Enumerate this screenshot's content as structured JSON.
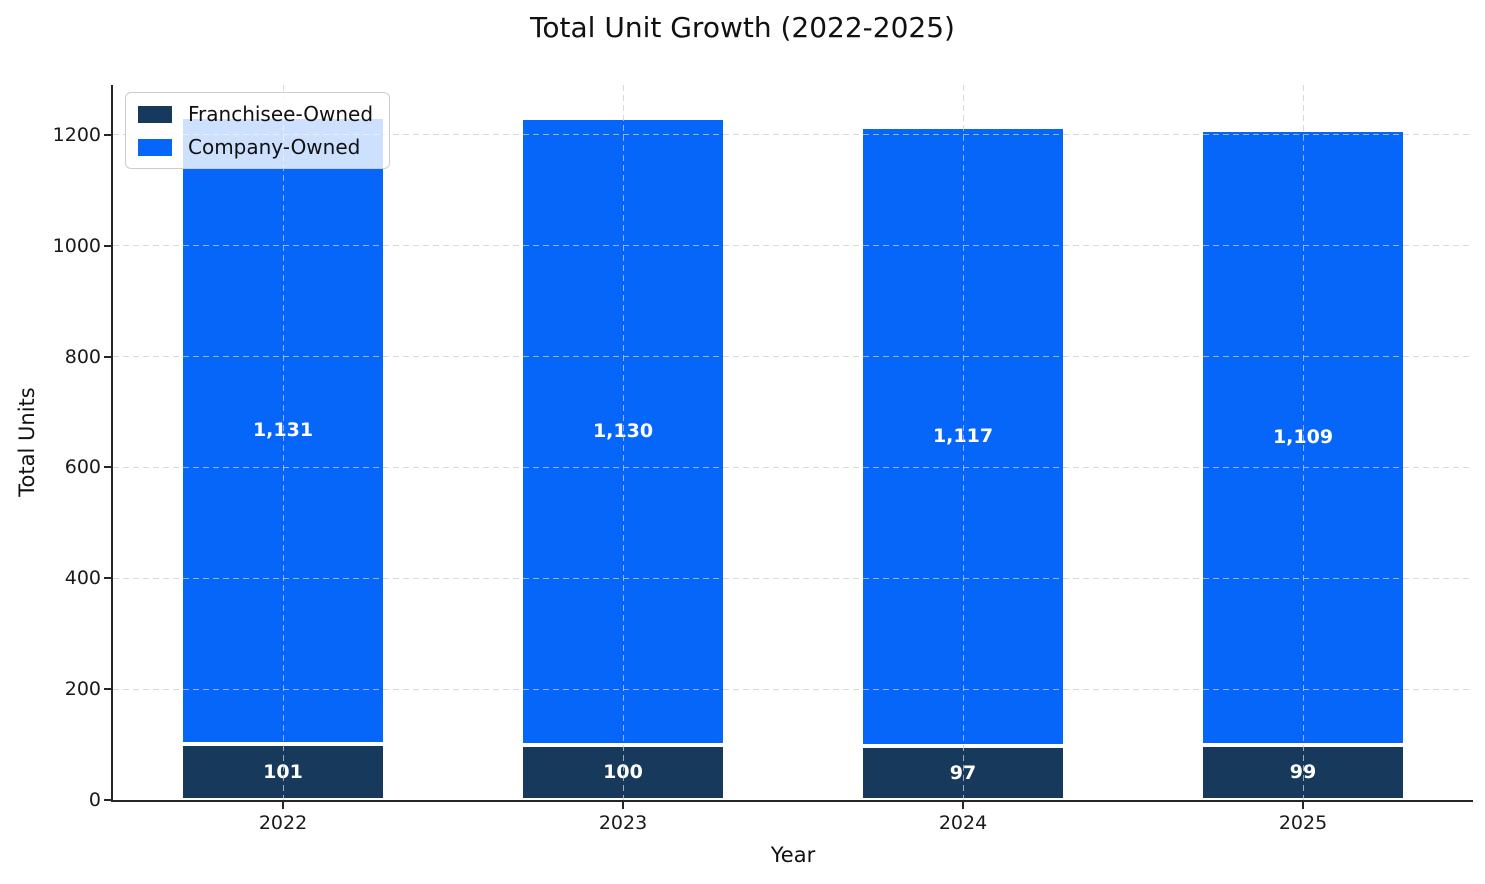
{
  "chart_data": {
    "type": "bar",
    "stacked": true,
    "title": "Total Unit Growth (2022-2025)",
    "xlabel": "Year",
    "ylabel": "Total Units",
    "categories": [
      "2022",
      "2023",
      "2024",
      "2025"
    ],
    "series": [
      {
        "name": "Franchisee-Owned",
        "color": "#17395C",
        "values": [
          101,
          100,
          97,
          99
        ],
        "labels": [
          "101",
          "100",
          "97",
          "99"
        ]
      },
      {
        "name": "Company-Owned",
        "color": "#0566F9",
        "values": [
          1131,
          1130,
          1117,
          1109
        ],
        "labels": [
          "1,131",
          "1,130",
          "1,117",
          "1,109"
        ]
      }
    ],
    "totals": [
      1232,
      1230,
      1214,
      1208
    ],
    "ylim": [
      0,
      1290
    ],
    "yticks": [
      0,
      200,
      400,
      600,
      800,
      1000,
      1200
    ],
    "bar_label_color": "#ffffff",
    "grid": "dashed, horizontal and vertical, drawn over bars",
    "legend_position": "upper-left",
    "spine_color": "#262626",
    "background_color": "#ffffff"
  }
}
